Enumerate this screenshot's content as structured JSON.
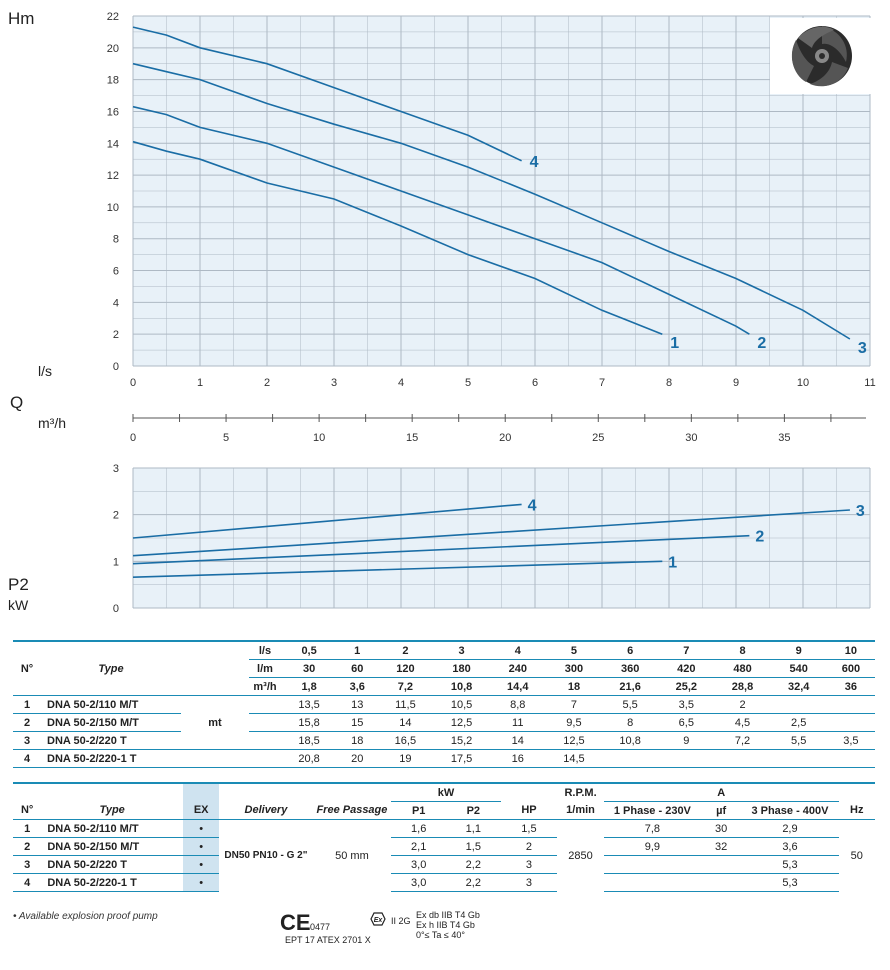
{
  "top_chart": {
    "y_unit": "Hm",
    "x_unit_ls": "l/s",
    "q_label": "Q",
    "x_unit_m3h": "m³/h",
    "y_ticks": [
      0,
      2,
      4,
      6,
      8,
      10,
      12,
      14,
      16,
      18,
      20,
      22
    ],
    "x_ticks_ls": [
      0,
      1,
      2,
      3,
      4,
      5,
      6,
      7,
      8,
      9,
      10,
      11
    ],
    "x_ticks_m3h": [
      0,
      5,
      10,
      15,
      20,
      25,
      30,
      35
    ]
  },
  "bottom_chart": {
    "y_unit": "P2",
    "y_unit2": "kW",
    "y_ticks": [
      0,
      1,
      2,
      3
    ]
  },
  "chart_data": [
    {
      "type": "line",
      "xlabel": "l/s",
      "ylabel": "Hm",
      "xlim": [
        0,
        11
      ],
      "ylim": [
        0,
        22
      ],
      "grid": true,
      "series": [
        {
          "name": "1",
          "x": [
            0,
            0.5,
            1,
            2,
            3,
            4,
            5,
            6,
            7,
            7.9
          ],
          "y": [
            14.1,
            13.5,
            13,
            11.5,
            10.5,
            8.8,
            7,
            5.5,
            3.5,
            2
          ]
        },
        {
          "name": "2",
          "x": [
            0,
            0.5,
            1,
            2,
            3,
            4,
            5,
            6,
            7,
            8,
            9,
            9.2
          ],
          "y": [
            16.3,
            15.8,
            15,
            14,
            12.5,
            11,
            9.5,
            8,
            6.5,
            4.5,
            2.5,
            2
          ]
        },
        {
          "name": "3",
          "x": [
            0,
            0.5,
            1,
            2,
            3,
            4,
            5,
            6,
            7,
            8,
            9,
            10,
            10.7
          ],
          "y": [
            19,
            18.5,
            18,
            16.5,
            15.2,
            14,
            12.5,
            10.8,
            9,
            7.2,
            5.5,
            3.5,
            1.7
          ]
        },
        {
          "name": "4",
          "x": [
            0,
            0.5,
            1,
            2,
            3,
            4,
            5,
            5.8
          ],
          "y": [
            21.3,
            20.8,
            20,
            19,
            17.5,
            16,
            14.5,
            12.9
          ]
        }
      ]
    },
    {
      "type": "line",
      "ylabel": "P2 kW",
      "xlim": [
        0,
        11
      ],
      "ylim": [
        0,
        3
      ],
      "grid": true,
      "series": [
        {
          "name": "1",
          "x": [
            0,
            7.9
          ],
          "y": [
            0.66,
            1.0
          ]
        },
        {
          "name": "2",
          "x": [
            0,
            9.2
          ],
          "y": [
            0.95,
            1.55
          ]
        },
        {
          "name": "3",
          "x": [
            0,
            10.7
          ],
          "y": [
            1.12,
            2.1
          ]
        },
        {
          "name": "4",
          "x": [
            0,
            5.8
          ],
          "y": [
            1.5,
            2.22
          ]
        }
      ]
    }
  ],
  "colors": {
    "curve": "#1a6da5",
    "grid_bg": "#e8f1f8",
    "grid": "#aeb9c4",
    "rule": "#1a8bb5",
    "ex_bg": "#cfe3f0"
  },
  "table1": {
    "col_no": "N°",
    "col_type": "Type",
    "units": [
      "l/s",
      "l/m",
      "m³/h"
    ],
    "ls": [
      "0,5",
      "1",
      "2",
      "3",
      "4",
      "5",
      "6",
      "7",
      "8",
      "9",
      "10"
    ],
    "lm": [
      "30",
      "60",
      "120",
      "180",
      "240",
      "300",
      "360",
      "420",
      "480",
      "540",
      "600"
    ],
    "m3h": [
      "1,8",
      "3,6",
      "7,2",
      "10,8",
      "14,4",
      "18",
      "21,6",
      "25,2",
      "28,8",
      "32,4",
      "36"
    ],
    "mt": "mt",
    "rows": [
      {
        "no": "1",
        "type": "DNA 50-2/110 M/T",
        "v": [
          "13,5",
          "13",
          "11,5",
          "10,5",
          "8,8",
          "7",
          "5,5",
          "3,5",
          "2",
          "",
          ""
        ]
      },
      {
        "no": "2",
        "type": "DNA 50-2/150 M/T",
        "v": [
          "15,8",
          "15",
          "14",
          "12,5",
          "11",
          "9,5",
          "8",
          "6,5",
          "4,5",
          "2,5",
          ""
        ]
      },
      {
        "no": "3",
        "type": "DNA 50-2/220 T",
        "v": [
          "18,5",
          "18",
          "16,5",
          "15,2",
          "14",
          "12,5",
          "10,8",
          "9",
          "7,2",
          "5,5",
          "3,5"
        ]
      },
      {
        "no": "4",
        "type": "DNA 50-2/220-1 T",
        "v": [
          "20,8",
          "20",
          "19",
          "17,5",
          "16",
          "14,5",
          "",
          "",
          "",
          "",
          ""
        ]
      }
    ]
  },
  "table2": {
    "col_no": "N°",
    "col_type": "Type",
    "col_ex": "EX",
    "col_delivery": "Delivery",
    "col_free": "Free Passage",
    "col_kw": "kW",
    "col_p1": "P1",
    "col_p2": "P2",
    "col_hp": "HP",
    "col_rpm": "R.P.M.",
    "col_rpm2": "1/min",
    "col_a": "A",
    "col_1ph": "1 Phase - 230V",
    "col_uf": "µf",
    "col_3ph": "3 Phase - 400V",
    "col_hz": "Hz",
    "delivery": "DN50 PN10 - G 2\"",
    "free_passage": "50 mm",
    "rpm": "2850",
    "hz": "50",
    "rows": [
      {
        "no": "1",
        "type": "DNA 50-2/110 M/T",
        "ex": "•",
        "p1": "1,6",
        "p2": "1,1",
        "hp": "1,5",
        "a1": "7,8",
        "uf": "30",
        "a3": "2,9"
      },
      {
        "no": "2",
        "type": "DNA 50-2/150 M/T",
        "ex": "•",
        "p1": "2,1",
        "p2": "1,5",
        "hp": "2",
        "a1": "9,9",
        "uf": "32",
        "a3": "3,6"
      },
      {
        "no": "3",
        "type": "DNA 50-2/220 T",
        "ex": "•",
        "p1": "3,0",
        "p2": "2,2",
        "hp": "3",
        "a1": "",
        "uf": "",
        "a3": "5,3"
      },
      {
        "no": "4",
        "type": "DNA 50-2/220-1 T",
        "ex": "•",
        "p1": "3,0",
        "p2": "2,2",
        "hp": "3",
        "a1": "",
        "uf": "",
        "a3": "5,3"
      }
    ]
  },
  "footer": {
    "note": "•  Available explosion proof pump",
    "ce": "CE",
    "ce_num": "0477",
    "atex": "EPT 17 ATEX 2701 X",
    "ex_group": "II 2G",
    "ex_line1": "Ex db IIB T4 Gb",
    "ex_line2": "Ex h IIB T4 Gb",
    "ex_line3": "0°≤ Ta ≤ 40°"
  }
}
